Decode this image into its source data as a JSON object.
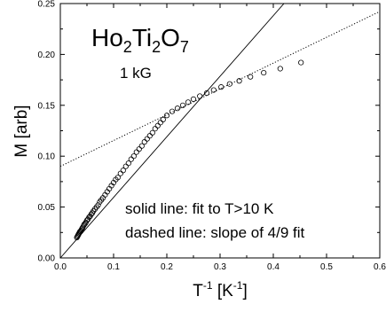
{
  "chart_data": {
    "type": "scatter",
    "title": "",
    "xlabel": {
      "base": "T",
      "sup1": "-1",
      "mid": " [K",
      "sup2": "-1",
      "end": "]"
    },
    "ylabel": "M [arb]",
    "xlim": [
      0.0,
      0.6
    ],
    "ylim": [
      0.0,
      0.25
    ],
    "xticks": [
      0.0,
      0.1,
      0.2,
      0.3,
      0.4,
      0.5,
      0.6
    ],
    "xtick_labels": [
      "0.0",
      "0.1",
      "0.2",
      "0.3",
      "0.4",
      "0.5",
      "0.6"
    ],
    "yticks": [
      0.0,
      0.05,
      0.1,
      0.15,
      0.2,
      0.25
    ],
    "ytick_labels": [
      "0.00",
      "0.05",
      "0.10",
      "0.15",
      "0.20",
      "0.25"
    ],
    "grid": false,
    "annotations": {
      "compound": [
        {
          "text": "Ho",
          "sub": false
        },
        {
          "text": "2",
          "sub": true
        },
        {
          "text": "Ti",
          "sub": false
        },
        {
          "text": "2",
          "sub": true
        },
        {
          "text": "O",
          "sub": false
        },
        {
          "text": "7",
          "sub": true
        }
      ],
      "field": "1 kG",
      "solid_note": "solid line: fit to T>10 K",
      "dashed_note": "dashed line: slope of 4/9 fit"
    },
    "series": [
      {
        "style": "open-circle",
        "x": [
          0.031,
          0.032,
          0.033,
          0.034,
          0.035,
          0.036,
          0.037,
          0.038,
          0.039,
          0.04,
          0.041,
          0.042,
          0.044,
          0.045,
          0.047,
          0.048,
          0.05,
          0.052,
          0.054,
          0.056,
          0.058,
          0.06,
          0.062,
          0.065,
          0.068,
          0.071,
          0.074,
          0.077,
          0.08,
          0.084,
          0.088,
          0.092,
          0.096,
          0.1,
          0.104,
          0.108,
          0.113,
          0.118,
          0.123,
          0.128,
          0.133,
          0.138,
          0.143,
          0.148,
          0.153,
          0.158,
          0.163,
          0.168,
          0.173,
          0.178,
          0.183,
          0.188,
          0.193,
          0.2,
          0.21,
          0.22,
          0.23,
          0.24,
          0.25,
          0.262,
          0.275,
          0.288,
          0.302,
          0.318,
          0.336,
          0.357,
          0.382,
          0.413,
          0.452
        ],
        "y": [
          0.02,
          0.021,
          0.022,
          0.023,
          0.024,
          0.025,
          0.026,
          0.026,
          0.027,
          0.028,
          0.029,
          0.03,
          0.032,
          0.033,
          0.034,
          0.035,
          0.037,
          0.038,
          0.04,
          0.041,
          0.043,
          0.044,
          0.046,
          0.048,
          0.05,
          0.052,
          0.055,
          0.057,
          0.059,
          0.062,
          0.065,
          0.068,
          0.071,
          0.074,
          0.077,
          0.079,
          0.083,
          0.086,
          0.09,
          0.093,
          0.097,
          0.1,
          0.104,
          0.107,
          0.11,
          0.114,
          0.117,
          0.12,
          0.123,
          0.127,
          0.13,
          0.133,
          0.136,
          0.14,
          0.144,
          0.147,
          0.15,
          0.153,
          0.156,
          0.159,
          0.162,
          0.165,
          0.168,
          0.171,
          0.174,
          0.178,
          0.182,
          0.186,
          0.192
        ]
      }
    ],
    "lines": [
      {
        "style": "solid",
        "x": [
          0.0,
          0.42
        ],
        "y": [
          0.0,
          0.25
        ]
      },
      {
        "style": "dotted",
        "x": [
          0.0,
          0.6
        ],
        "y": [
          0.09,
          0.2422
        ]
      }
    ]
  }
}
